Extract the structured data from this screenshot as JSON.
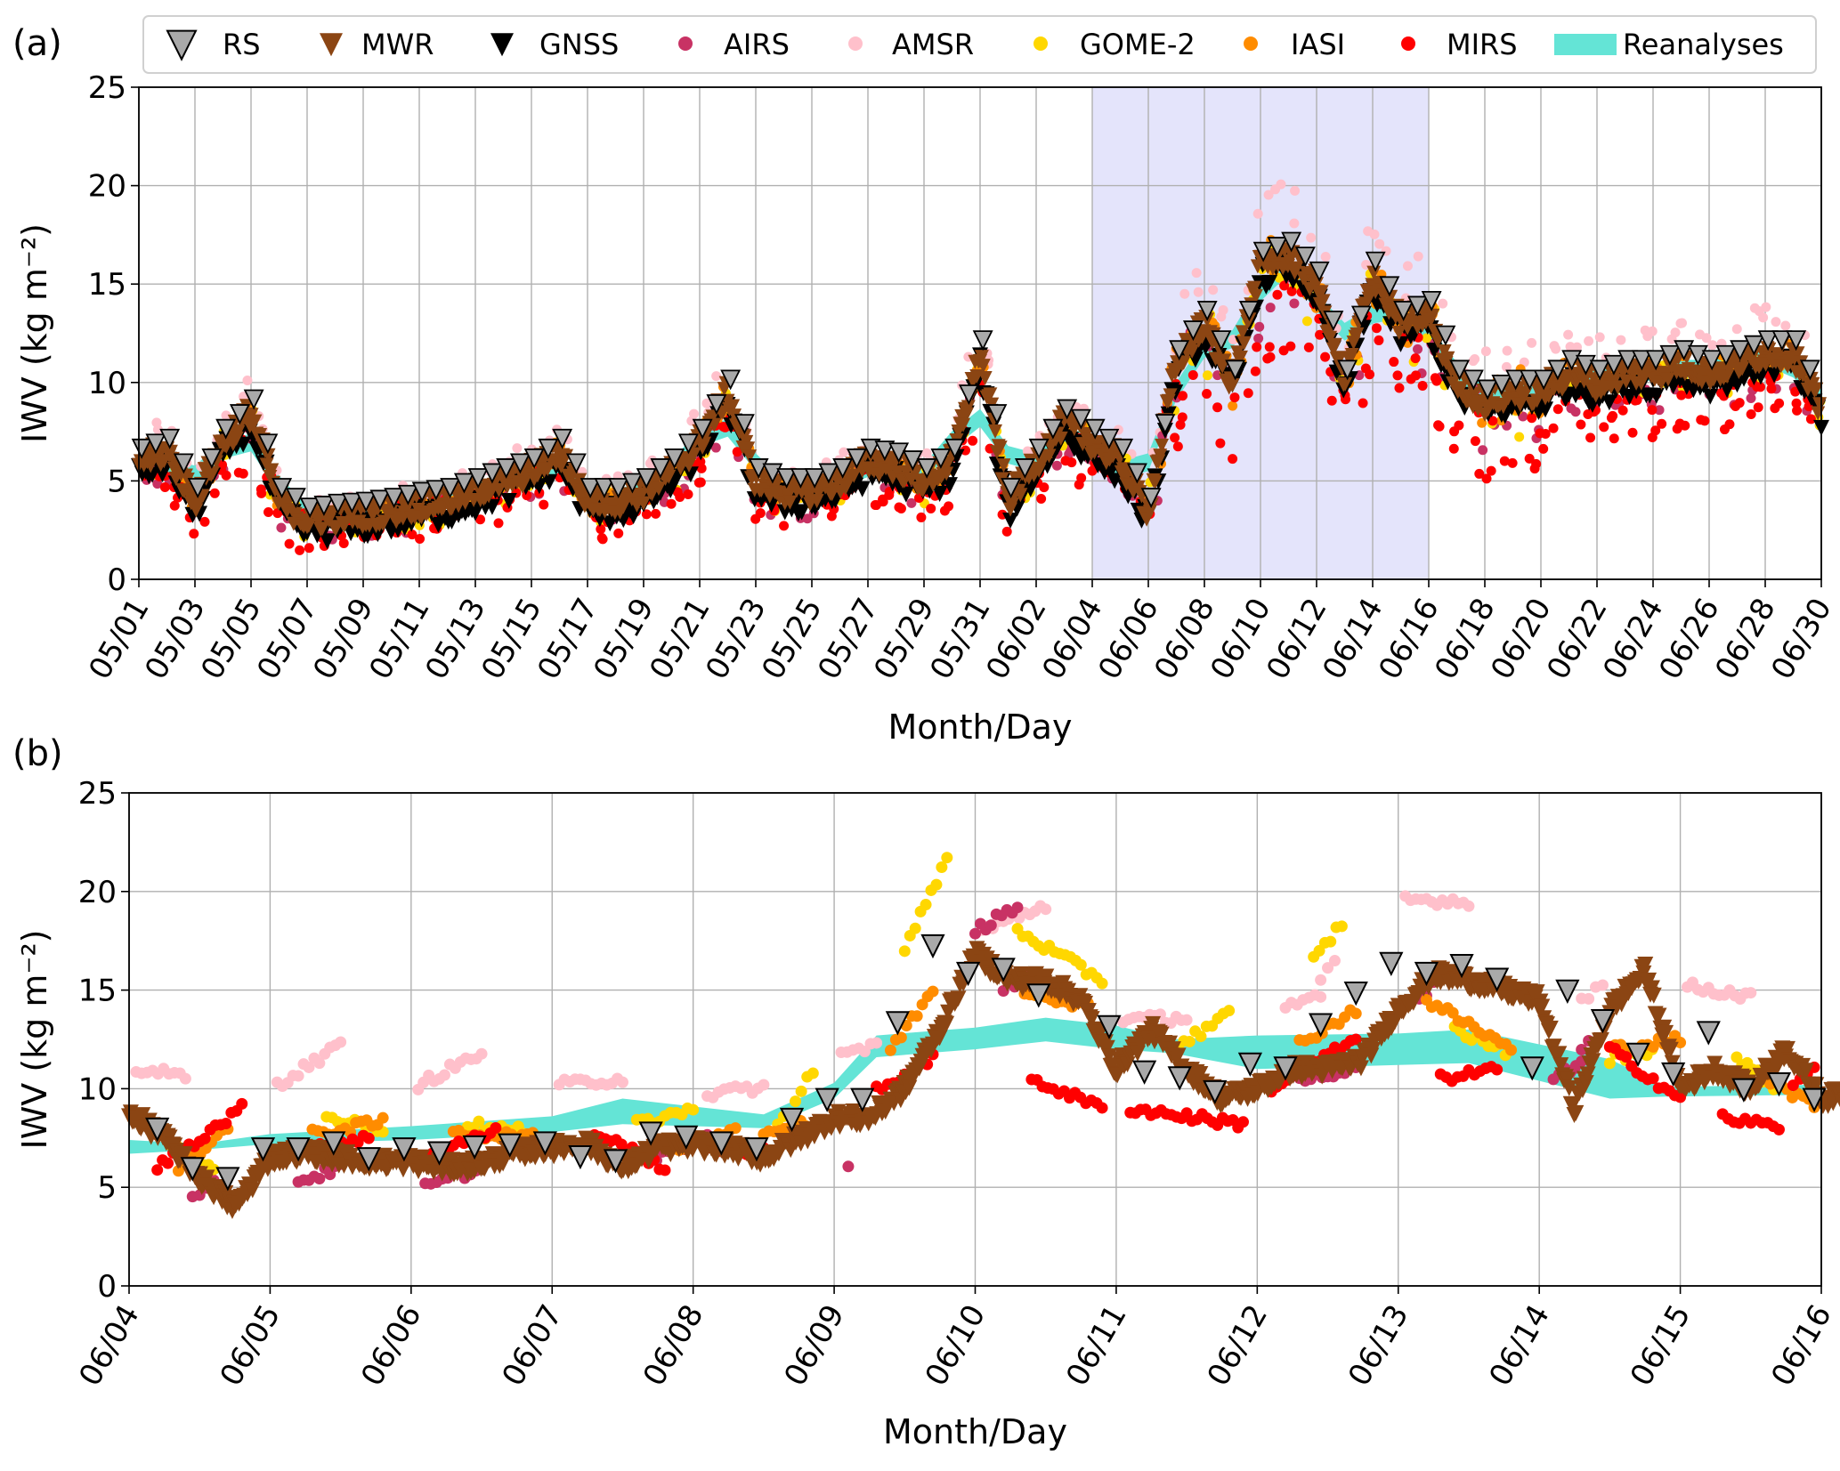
{
  "chart_data": [
    {
      "panel": "(a)",
      "type": "scatter",
      "xlabel": "Month/Day",
      "ylabel": "IWV (kg m⁻²)",
      "ylim": [
        0,
        25
      ],
      "yticks": [
        "0",
        "5",
        "10",
        "15",
        "20",
        "25"
      ],
      "xlim_days": [
        0,
        60
      ],
      "xtick_labels": [
        "05/01",
        "05/03",
        "05/05",
        "05/07",
        "05/09",
        "05/11",
        "05/13",
        "05/15",
        "05/17",
        "05/19",
        "05/21",
        "05/23",
        "05/25",
        "05/27",
        "05/29",
        "05/31",
        "06/02",
        "06/04",
        "06/06",
        "06/08",
        "06/10",
        "06/12",
        "06/14",
        "06/16",
        "06/18",
        "06/20",
        "06/22",
        "06/24",
        "06/26",
        "06/28",
        "06/30"
      ],
      "highlight_range_days": [
        34,
        46
      ],
      "highlight_color": "#e4e4fb",
      "grid": true,
      "mwr_daily": [
        6,
        6.5,
        4,
        7,
        8.5,
        4,
        3,
        3.2,
        3.3,
        3.5,
        3.8,
        4,
        4.5,
        5,
        5.5,
        6.5,
        4,
        4,
        4.5,
        5.5,
        7,
        9.5,
        5,
        4.5,
        4.5,
        5,
        6,
        5.8,
        5,
        6,
        11.5,
        4,
        6,
        8,
        7,
        6,
        3.5,
        11,
        13,
        10,
        16,
        16.5,
        15,
        10,
        15.5,
        13,
        13.5,
        10,
        9,
        9.5,
        9.5,
        10.5,
        10,
        10.5,
        10.5,
        11,
        10.5,
        11,
        11.5,
        11.5,
        8.5
      ],
      "satellite_model": {
        "AIRS": {
          "offset": -0.6,
          "spread": 2.0,
          "per_day": 3
        },
        "AMSR": {
          "offset": 1.0,
          "spread": 1.2,
          "per_day": 3
        },
        "GOME-2": {
          "offset": -0.3,
          "spread": 2.0,
          "per_day": 3
        },
        "IASI": {
          "offset": 0.0,
          "spread": 1.4,
          "per_day": 5
        },
        "MIRS": {
          "offset": -1.2,
          "spread": 2.4,
          "per_day": 6
        }
      }
    },
    {
      "panel": "(b)",
      "type": "scatter",
      "xlabel": "Month/Day",
      "ylabel": "IWV (kg m⁻²)",
      "ylim": [
        0,
        25
      ],
      "yticks": [
        "0",
        "5",
        "10",
        "15",
        "20",
        "25"
      ],
      "xlim_days": [
        0,
        12
      ],
      "xtick_labels": [
        "06/04",
        "06/05",
        "06/06",
        "06/07",
        "06/08",
        "06/09",
        "06/10",
        "06/11",
        "06/12",
        "06/13",
        "06/14",
        "06/15",
        "06/16"
      ],
      "grid": true,
      "mwr_quarter_day": [
        8.8,
        7.5,
        5.5,
        4.0,
        6.5,
        6.8,
        6.5,
        6.3,
        6.3,
        6.0,
        6.2,
        6.8,
        7.0,
        7.2,
        6.0,
        7.0,
        7.2,
        7.0,
        6.5,
        7.5,
        8.5,
        8.5,
        10,
        13,
        16.8,
        15.5,
        15.5,
        14.5,
        11,
        13,
        11,
        9.5,
        10,
        11,
        11,
        11.5,
        14,
        15.8,
        15.5,
        15,
        14.5,
        9,
        14,
        16,
        10,
        11,
        10,
        12,
        9.5,
        9.8,
        10.2,
        9.5,
        8.8
      ],
      "rs": [
        [
          0.2,
          8
        ],
        [
          0.45,
          6
        ],
        [
          0.7,
          5.5
        ],
        [
          0.95,
          7
        ],
        [
          1.2,
          7
        ],
        [
          1.45,
          7.3
        ],
        [
          1.7,
          6.5
        ],
        [
          1.95,
          7
        ],
        [
          2.2,
          6.8
        ],
        [
          2.45,
          7.1
        ],
        [
          2.7,
          7.2
        ],
        [
          2.95,
          7.3
        ],
        [
          3.2,
          6.6
        ],
        [
          3.45,
          6.4
        ],
        [
          3.7,
          7.8
        ],
        [
          3.95,
          7.6
        ],
        [
          4.2,
          7.3
        ],
        [
          4.45,
          7.0
        ],
        [
          4.7,
          8.5
        ],
        [
          4.95,
          9.5
        ],
        [
          5.2,
          9.5
        ],
        [
          5.45,
          13.4
        ],
        [
          5.7,
          17.3
        ],
        [
          5.95,
          15.9
        ],
        [
          6.2,
          16.1
        ],
        [
          6.45,
          14.8
        ],
        [
          6.95,
          13.2
        ],
        [
          7.2,
          10.9
        ],
        [
          7.45,
          10.6
        ],
        [
          7.7,
          9.9
        ],
        [
          7.95,
          11.3
        ],
        [
          8.2,
          11.1
        ],
        [
          8.45,
          13.3
        ],
        [
          8.7,
          14.9
        ],
        [
          8.95,
          16.4
        ],
        [
          9.2,
          15.9
        ],
        [
          9.45,
          16.3
        ],
        [
          9.7,
          15.6
        ],
        [
          9.95,
          11.1
        ],
        [
          10.2,
          15.0
        ],
        [
          10.45,
          13.5
        ],
        [
          10.7,
          11.8
        ],
        [
          10.95,
          10.8
        ],
        [
          11.2,
          12.9
        ],
        [
          11.45,
          10.0
        ],
        [
          11.7,
          10.3
        ],
        [
          11.95,
          9.5
        ]
      ],
      "reanalyses_band": [
        [
          0,
          6.7,
          7.4
        ],
        [
          0.5,
          6.9,
          7.2
        ],
        [
          1,
          7.2,
          7.7
        ],
        [
          2,
          7.4,
          8.1
        ],
        [
          3,
          7.8,
          8.6
        ],
        [
          3.5,
          8.2,
          9.5
        ],
        [
          4.5,
          8.0,
          8.7
        ],
        [
          5,
          9.5,
          10.3
        ],
        [
          5.3,
          11.6,
          12.7
        ],
        [
          6,
          12.0,
          13.1
        ],
        [
          6.5,
          12.4,
          13.6
        ],
        [
          7,
          12.0,
          13.2
        ],
        [
          7.4,
          11.8,
          12.5
        ],
        [
          8,
          11.0,
          12.7
        ],
        [
          9,
          11.2,
          12.8
        ],
        [
          9.5,
          11.3,
          13.0
        ],
        [
          10.5,
          9.5,
          11.5
        ],
        [
          10.9,
          9.6,
          10.1
        ],
        [
          12,
          9.7,
          10.2
        ]
      ],
      "satellite_clusters": {
        "AIRS": [
          [
            0.45,
            0.6,
            4.3,
            5.5
          ],
          [
            1.2,
            1.5,
            5.3,
            6
          ],
          [
            2.1,
            2.5,
            5,
            6
          ],
          [
            3.7,
            4.1,
            6.5,
            7.5
          ],
          [
            5.1,
            5.1,
            5.9,
            5.9
          ],
          [
            6.0,
            6.3,
            18,
            19.2
          ],
          [
            6.2,
            6.4,
            15,
            16
          ],
          [
            8.3,
            8.7,
            10.3,
            11.2
          ],
          [
            9.15,
            9.25,
            14.6,
            15.2
          ],
          [
            10.1,
            10.3,
            10.7,
            11.3
          ],
          [
            10.25,
            10.35,
            11,
            12.5
          ]
        ],
        "AMSR": [
          [
            0.05,
            0.4,
            11,
            10.6
          ],
          [
            1.05,
            1.5,
            10.2,
            12.2
          ],
          [
            2.05,
            2.5,
            10.2,
            11.8
          ],
          [
            3.05,
            3.5,
            10.2,
            10.5
          ],
          [
            4.1,
            4.5,
            9.7,
            10.1
          ],
          [
            5.05,
            5.3,
            11.7,
            12.3
          ],
          [
            6.05,
            6.5,
            18,
            19.3
          ],
          [
            7.05,
            7.5,
            13.5,
            13.6
          ],
          [
            8.2,
            8.45,
            14.2,
            14.6
          ],
          [
            8.45,
            8.55,
            15.3,
            16.5
          ],
          [
            9.05,
            9.5,
            19.6,
            19.5
          ],
          [
            10.3,
            10.45,
            14.5,
            15.3
          ],
          [
            11.05,
            11.5,
            15.2,
            14.7
          ]
        ],
        "GOME-2": [
          [
            0.3,
            0.6,
            7,
            6
          ],
          [
            1.4,
            1.8,
            8.5,
            8
          ],
          [
            2.4,
            2.8,
            8.2,
            7.8
          ],
          [
            3.6,
            4.0,
            8.2,
            9
          ],
          [
            4.6,
            4.85,
            8,
            11
          ],
          [
            5.5,
            5.8,
            17,
            21.7
          ],
          [
            6.3,
            6.9,
            18,
            15.5
          ],
          [
            7.4,
            7.8,
            12,
            13.8
          ],
          [
            8.4,
            8.6,
            16.5,
            18.4
          ],
          [
            9.4,
            9.8,
            13,
            11.8
          ],
          [
            10.5,
            10.8,
            11.5,
            12
          ],
          [
            11.4,
            11.7,
            11.5,
            10
          ]
        ],
        "IASI": [
          [
            0.35,
            0.7,
            6,
            8
          ],
          [
            1.3,
            1.8,
            7.7,
            8.3
          ],
          [
            2.3,
            2.9,
            7.8,
            7.5
          ],
          [
            3.9,
            4.3,
            7,
            8
          ],
          [
            4.5,
            4.8,
            7.8,
            8.2
          ],
          [
            5.4,
            5.7,
            12,
            15
          ],
          [
            6.35,
            6.8,
            15,
            14.2
          ],
          [
            8.3,
            8.7,
            12.3,
            14
          ],
          [
            9.2,
            9.8,
            14.5,
            12
          ],
          [
            10.5,
            11.0,
            12,
            12.5
          ],
          [
            11.6,
            11.95,
            10.5,
            9.2
          ]
        ],
        "MIRS": [
          [
            0.2,
            0.8,
            6,
            9
          ],
          [
            1.2,
            1.7,
            7,
            7.5
          ],
          [
            2.0,
            2.6,
            6.5,
            7.8
          ],
          [
            3.3,
            3.8,
            7.8,
            6
          ],
          [
            4.1,
            4.5,
            7,
            6.8
          ],
          [
            5.3,
            5.7,
            9.9,
            11.5
          ],
          [
            6.4,
            6.9,
            10.5,
            9
          ],
          [
            7.1,
            7.9,
            9,
            8.2
          ],
          [
            8.1,
            8.7,
            10,
            12.5
          ],
          [
            9.3,
            9.7,
            10.5,
            11
          ],
          [
            10.5,
            11.0,
            12,
            9.5
          ],
          [
            11.3,
            11.7,
            8.5,
            8.1
          ],
          [
            11.8,
            11.95,
            10,
            11
          ]
        ]
      }
    }
  ],
  "legend": [
    {
      "label": "RS",
      "marker": "triangle-down",
      "color": "#a9a9a9"
    },
    {
      "label": "MWR",
      "marker": "triangle-down",
      "color": "#8b4513"
    },
    {
      "label": "GNSS",
      "marker": "triangle-down",
      "color": "#000000"
    },
    {
      "label": "AIRS",
      "marker": "circle",
      "color": "#c83264"
    },
    {
      "label": "AMSR",
      "marker": "circle",
      "color": "#ffc0cb"
    },
    {
      "label": "GOME-2",
      "marker": "circle",
      "color": "#ffd700"
    },
    {
      "label": "IASI",
      "marker": "circle",
      "color": "#ff8c00"
    },
    {
      "label": "MIRS",
      "marker": "circle",
      "color": "#ff0000"
    },
    {
      "label": "Reanalyses",
      "marker": "patch",
      "color": "#64e4d6"
    }
  ]
}
